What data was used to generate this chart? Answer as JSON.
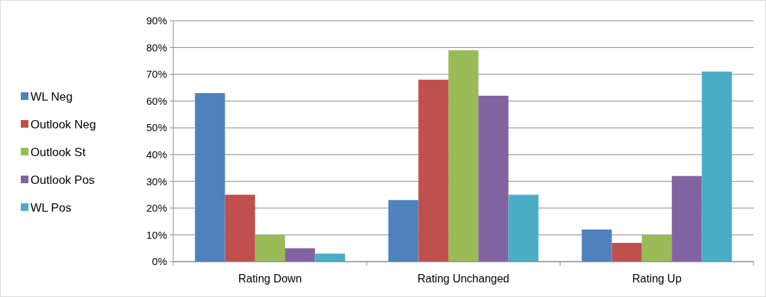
{
  "chart_data": {
    "type": "bar",
    "categories": [
      "Rating Down",
      "Rating Unchanged",
      "Rating Up"
    ],
    "series": [
      {
        "name": "WL Neg",
        "color": "#4f81bd",
        "values": [
          63,
          23,
          12
        ]
      },
      {
        "name": "Outlook Neg",
        "color": "#c0504d",
        "values": [
          25,
          68,
          7
        ]
      },
      {
        "name": "Outlook St",
        "color": "#9bbb59",
        "values": [
          10,
          79,
          10
        ]
      },
      {
        "name": "Outlook Pos",
        "color": "#8064a2",
        "values": [
          5,
          62,
          32
        ]
      },
      {
        "name": "WL Pos",
        "color": "#4bacc6",
        "values": [
          3,
          25,
          71
        ]
      }
    ],
    "ylim": [
      0,
      90
    ],
    "yticks": [
      {
        "value": 0,
        "label": "0%"
      },
      {
        "value": 10,
        "label": "10%"
      },
      {
        "value": 20,
        "label": "20%"
      },
      {
        "value": 30,
        "label": "30%"
      },
      {
        "value": 40,
        "label": "40%"
      },
      {
        "value": 50,
        "label": "50%"
      },
      {
        "value": 60,
        "label": "60%"
      },
      {
        "value": 70,
        "label": "70%"
      },
      {
        "value": 80,
        "label": "80%"
      },
      {
        "value": 90,
        "label": "90%"
      }
    ],
    "grid": "y",
    "legend": "left"
  }
}
